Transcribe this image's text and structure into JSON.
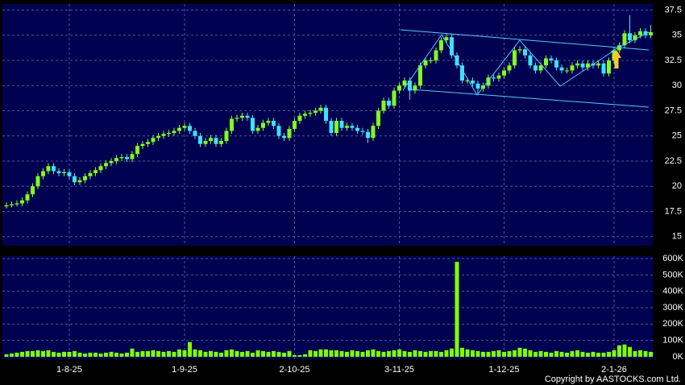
{
  "chart_data": {
    "type": "candlestick",
    "categories": [
      null,
      null,
      null,
      null,
      null,
      null,
      null,
      null,
      null,
      null,
      null,
      null,
      "1-8-25",
      null,
      null,
      null,
      null,
      null,
      null,
      null,
      null,
      null,
      null,
      null,
      null,
      null,
      null,
      null,
      null,
      null,
      null,
      null,
      null,
      null,
      "1-9-25",
      null,
      null,
      null,
      null,
      null,
      null,
      null,
      null,
      null,
      null,
      null,
      null,
      null,
      null,
      null,
      null,
      null,
      null,
      null,
      null,
      "2-10-25",
      null,
      null,
      null,
      null,
      null,
      null,
      null,
      null,
      null,
      null,
      null,
      null,
      null,
      null,
      null,
      null,
      null,
      null,
      null,
      "3-11-25",
      null,
      null,
      null,
      null,
      null,
      null,
      null,
      null,
      null,
      null,
      null,
      null,
      null,
      null,
      null,
      null,
      null,
      null,
      null,
      "1-12-25",
      null,
      null,
      null,
      null,
      null,
      null,
      null,
      null,
      null,
      null,
      null,
      null,
      null,
      null,
      null,
      null,
      null,
      null,
      null,
      null,
      "2-1-26",
      null,
      null,
      null,
      null,
      null,
      null,
      null
    ],
    "open": [
      18.0,
      18.1,
      18.2,
      18.3,
      18.6,
      19.2,
      20.0,
      21.0,
      21.5,
      22.0,
      21.5,
      21.3,
      21.4,
      21.0,
      20.4,
      20.6,
      21.0,
      21.3,
      21.6,
      22.0,
      22.3,
      22.5,
      22.8,
      22.9,
      22.7,
      23.2,
      24.0,
      24.2,
      24.4,
      24.8,
      25.0,
      25.2,
      25.3,
      25.5,
      25.8,
      26.0,
      25.5,
      25.0,
      24.2,
      24.5,
      24.8,
      24.2,
      24.5,
      25.5,
      26.7,
      26.8,
      27.0,
      26.8,
      25.5,
      25.8,
      26.3,
      26.5,
      26.0,
      25.0,
      24.8,
      25.7,
      26.5,
      27.0,
      27.2,
      27.3,
      27.5,
      27.8,
      26.5,
      25.3,
      26.5,
      25.8,
      26.0,
      25.8,
      25.5,
      25.4,
      24.8,
      26.0,
      27.5,
      28.5,
      28.0,
      29.5,
      30.0,
      30.5,
      29.5,
      30.0,
      32.0,
      32.5,
      32.5,
      33.5,
      34.5,
      34.8,
      33.0,
      32.0,
      30.5,
      30.5,
      30.2,
      29.7,
      30.0,
      30.8,
      30.7,
      31.0,
      31.5,
      32.0,
      33.5,
      33.6,
      33.0,
      32.0,
      31.5,
      32.0,
      32.7,
      32.5,
      31.8,
      31.5,
      31.5,
      32.0,
      32.2,
      31.8,
      32.2,
      32.0,
      32.2,
      31.2,
      32.5,
      33.5,
      34.0,
      35.2,
      34.5,
      35.0,
      35.4,
      35.0
    ],
    "high": [
      18.4,
      18.5,
      18.6,
      18.9,
      19.5,
      20.3,
      21.3,
      21.8,
      22.3,
      22.3,
      21.8,
      21.7,
      21.7,
      21.3,
      20.9,
      21.3,
      21.6,
      21.9,
      22.3,
      22.6,
      22.8,
      23.1,
      23.2,
      23.2,
      23.5,
      24.3,
      24.5,
      24.7,
      25.1,
      25.3,
      25.5,
      25.6,
      25.8,
      26.1,
      26.3,
      26.3,
      25.8,
      25.3,
      24.8,
      25.1,
      25.1,
      24.8,
      25.8,
      27.0,
      27.1,
      27.3,
      27.3,
      27.1,
      26.1,
      26.6,
      26.8,
      26.8,
      26.3,
      25.3,
      26.0,
      26.8,
      27.3,
      27.5,
      27.6,
      27.8,
      28.1,
      28.1,
      26.8,
      26.8,
      26.8,
      26.3,
      26.3,
      26.1,
      25.8,
      25.7,
      26.3,
      27.8,
      28.8,
      28.8,
      29.8,
      30.3,
      30.8,
      30.8,
      30.3,
      32.3,
      32.8,
      32.8,
      33.8,
      34.8,
      35.2,
      35.1,
      33.3,
      32.3,
      30.8,
      30.8,
      30.5,
      30.3,
      31.1,
      31.1,
      31.3,
      31.8,
      32.3,
      33.8,
      33.9,
      33.9,
      33.3,
      32.3,
      32.3,
      33.0,
      33.0,
      32.8,
      32.1,
      31.8,
      32.3,
      32.5,
      32.5,
      32.5,
      32.5,
      32.5,
      32.5,
      32.8,
      33.8,
      34.3,
      35.5,
      37.0,
      35.3,
      35.7,
      35.7,
      36.0
    ],
    "low": [
      17.8,
      17.9,
      18.0,
      18.0,
      18.3,
      18.9,
      19.7,
      20.7,
      21.2,
      21.2,
      21.0,
      21.0,
      20.7,
      20.1,
      20.1,
      20.3,
      20.7,
      21.0,
      21.3,
      21.7,
      22.0,
      22.2,
      22.5,
      22.4,
      22.4,
      22.9,
      23.7,
      23.9,
      24.1,
      24.5,
      24.7,
      24.9,
      25.0,
      25.2,
      25.5,
      25.2,
      24.7,
      23.9,
      23.9,
      24.2,
      23.9,
      23.9,
      24.2,
      25.2,
      26.4,
      26.5,
      26.5,
      25.2,
      25.2,
      25.5,
      26.0,
      25.7,
      24.7,
      24.5,
      24.5,
      25.4,
      26.2,
      26.7,
      26.9,
      27.0,
      27.2,
      26.2,
      25.0,
      25.0,
      25.5,
      25.5,
      25.5,
      25.2,
      25.1,
      24.3,
      24.5,
      25.7,
      27.2,
      27.7,
      27.7,
      29.2,
      29.7,
      28.6,
      29.2,
      29.7,
      31.7,
      32.2,
      32.2,
      33.2,
      34.2,
      32.7,
      31.7,
      30.2,
      30.2,
      29.9,
      29.2,
      29.4,
      29.7,
      30.4,
      30.4,
      30.7,
      31.2,
      31.7,
      33.2,
      32.7,
      31.7,
      31.2,
      31.2,
      31.7,
      32.2,
      31.5,
      31.2,
      31.2,
      31.2,
      31.7,
      31.5,
      31.5,
      31.7,
      31.7,
      30.9,
      30.9,
      32.2,
      33.2,
      33.7,
      34.2,
      34.2,
      34.7,
      34.7,
      34.7
    ],
    "close": [
      18.1,
      18.2,
      18.3,
      18.6,
      19.2,
      20.0,
      21.0,
      21.5,
      22.0,
      21.5,
      21.3,
      21.4,
      21.0,
      20.4,
      20.6,
      21.0,
      21.3,
      21.6,
      22.0,
      22.3,
      22.5,
      22.8,
      22.9,
      22.7,
      23.2,
      24.0,
      24.2,
      24.4,
      24.8,
      25.0,
      25.2,
      25.3,
      25.5,
      25.8,
      26.0,
      25.5,
      25.0,
      24.2,
      24.5,
      24.8,
      24.2,
      24.5,
      25.5,
      26.7,
      26.8,
      27.0,
      26.8,
      25.5,
      25.8,
      26.3,
      26.5,
      26.0,
      25.0,
      24.8,
      25.7,
      26.5,
      27.0,
      27.2,
      27.3,
      27.5,
      27.8,
      26.5,
      25.3,
      26.5,
      25.8,
      26.0,
      25.8,
      25.5,
      25.4,
      24.8,
      26.0,
      27.5,
      28.5,
      28.0,
      29.5,
      30.0,
      30.5,
      29.5,
      30.0,
      32.0,
      32.5,
      32.5,
      33.5,
      34.5,
      34.8,
      33.0,
      32.0,
      30.5,
      30.5,
      30.2,
      29.7,
      30.0,
      30.8,
      30.7,
      31.0,
      31.5,
      32.0,
      33.5,
      33.6,
      33.0,
      32.0,
      31.5,
      32.0,
      32.7,
      32.5,
      31.8,
      31.5,
      31.5,
      32.0,
      32.2,
      31.8,
      32.2,
      32.0,
      32.2,
      31.2,
      32.5,
      33.5,
      34.0,
      35.2,
      34.5,
      35.0,
      35.4,
      35.0,
      35.3
    ],
    "volume": [
      15000,
      20000,
      25000,
      30000,
      35000,
      35000,
      40000,
      35000,
      40000,
      30000,
      25000,
      30000,
      30000,
      35000,
      25000,
      20000,
      25000,
      25000,
      20000,
      25000,
      30000,
      25000,
      20000,
      25000,
      50000,
      30000,
      35000,
      35000,
      40000,
      35000,
      30000,
      35000,
      30000,
      45000,
      40000,
      90000,
      45000,
      40000,
      30000,
      35000,
      30000,
      25000,
      40000,
      45000,
      35000,
      30000,
      35000,
      25000,
      40000,
      35000,
      30000,
      35000,
      30000,
      25000,
      35000,
      10000,
      10000,
      15000,
      40000,
      35000,
      45000,
      45000,
      40000,
      40000,
      35000,
      30000,
      40000,
      35000,
      30000,
      40000,
      45000,
      35000,
      30000,
      35000,
      40000,
      45000,
      35000,
      30000,
      40000,
      35000,
      30000,
      35000,
      35000,
      30000,
      40000,
      50000,
      580000,
      55000,
      45000,
      40000,
      35000,
      30000,
      30000,
      35000,
      40000,
      30000,
      35000,
      40000,
      55000,
      50000,
      40000,
      30000,
      35000,
      30000,
      25000,
      35000,
      30000,
      25000,
      35000,
      40000,
      30000,
      25000,
      30000,
      25000,
      25000,
      30000,
      40000,
      70000,
      75000,
      60000,
      35000,
      40000,
      35000,
      30000
    ],
    "ylim": [
      14.1,
      38.1
    ],
    "yticks": [
      15,
      17.5,
      20,
      22.5,
      25,
      27.5,
      30,
      32.5,
      35,
      37.5
    ],
    "volume_ylim": [
      -15000,
      615000
    ],
    "volume_yticks": [
      {
        "value": 0,
        "label": "0K"
      },
      {
        "value": 100000,
        "label": "100K"
      },
      {
        "value": 200000,
        "label": "200K"
      },
      {
        "value": 300000,
        "label": "300K"
      },
      {
        "value": 400000,
        "label": "400K"
      },
      {
        "value": 500000,
        "label": "500K"
      },
      {
        "value": 600000,
        "label": "600K"
      }
    ],
    "up_color": "#80ff20",
    "down_color": "#40e0ff",
    "volume_color": "#80ff00",
    "grid": true,
    "copyright": "Copyright by AASTOCKS.com Ltd."
  }
}
